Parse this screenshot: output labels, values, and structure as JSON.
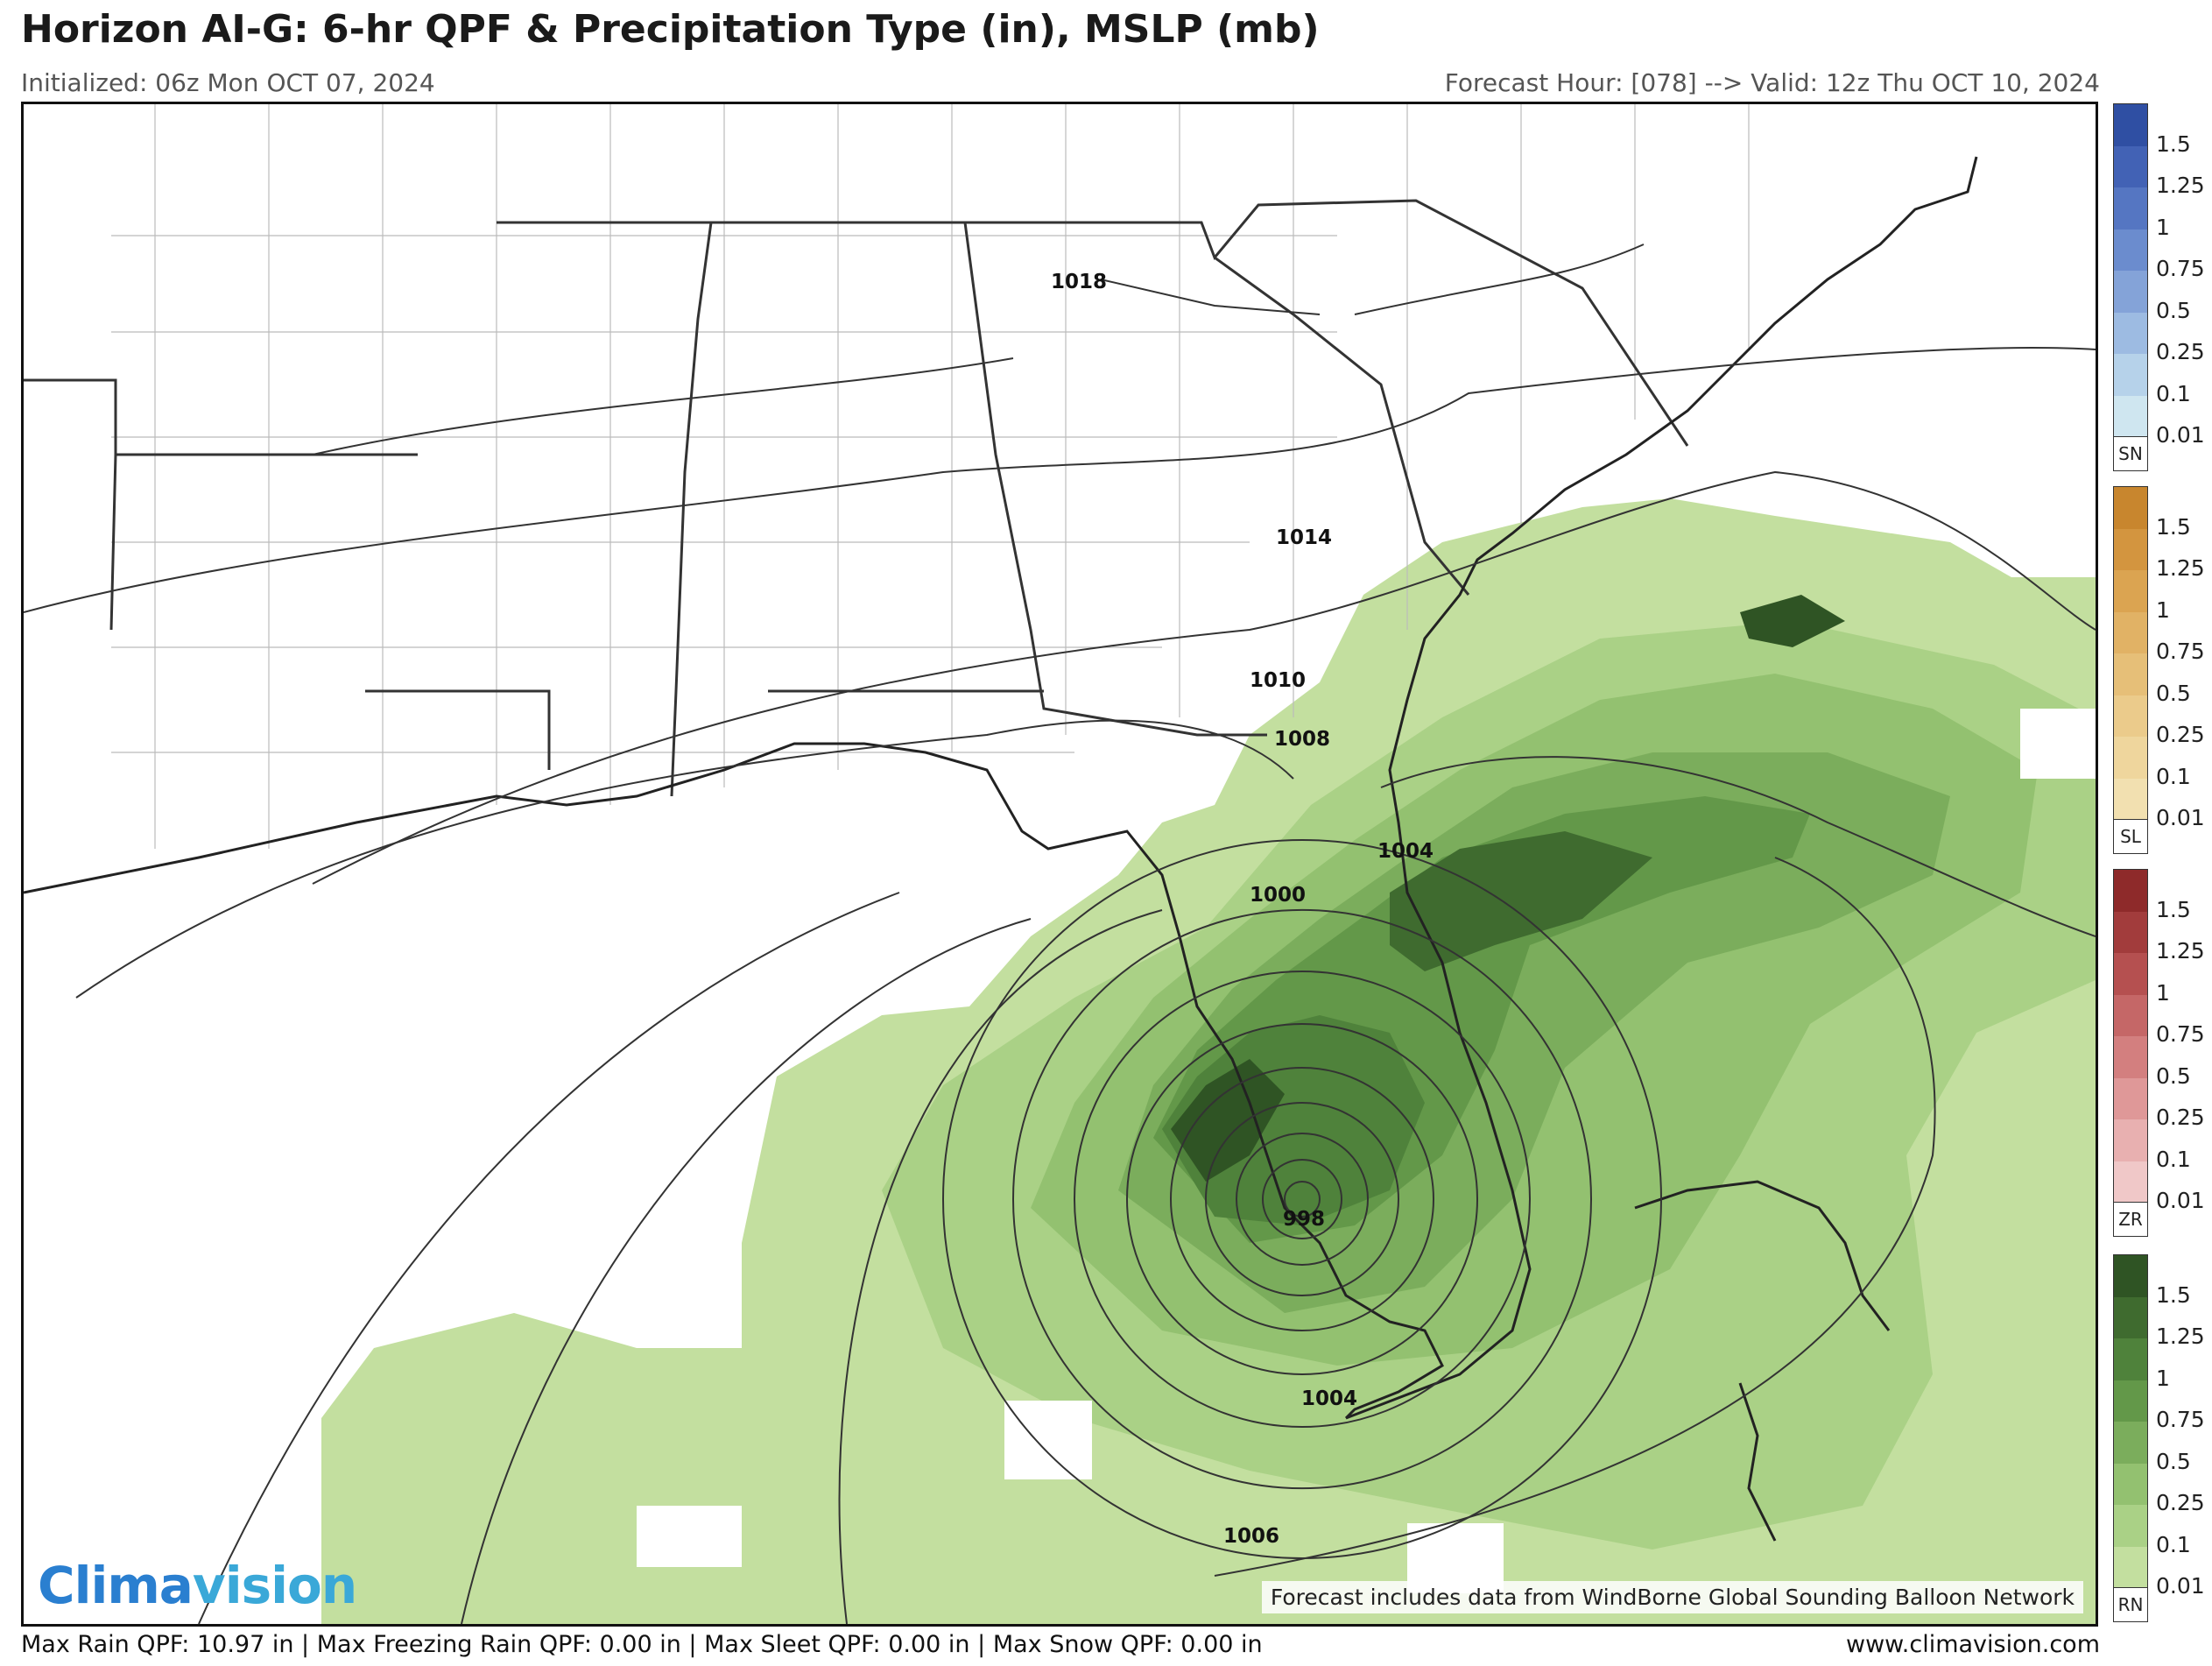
{
  "header": {
    "title": "Horizon AI-G: 6-hr QPF & Precipitation Type (in), MSLP (mb)",
    "initialized": "Initialized: 06z Mon OCT 07, 2024",
    "valid": "Forecast Hour: [078] --> Valid: 12z Thu OCT 10, 2024"
  },
  "isobar_labels": [
    "1018",
    "1014",
    "1010",
    "1008",
    "1004",
    "1000",
    "998",
    "1004",
    "1006"
  ],
  "map": {
    "attribution": "Forecast includes data from WindBorne Global Sounding Balloon Network",
    "logo_part1": "Clima",
    "logo_part2": "vision"
  },
  "legends": [
    {
      "tag": "SN",
      "labels": [
        "1.5",
        "1.25",
        "1",
        "0.75",
        "0.5",
        "0.25",
        "0.1",
        "0.01"
      ],
      "colors": [
        "#2f4fa3",
        "#4262b5",
        "#5576c2",
        "#6b8cce",
        "#84a3d8",
        "#9dbbe2",
        "#b6d2ea",
        "#cfe6f0"
      ]
    },
    {
      "tag": "SL",
      "labels": [
        "1.5",
        "1.25",
        "1",
        "0.75",
        "0.5",
        "0.25",
        "0.1",
        "0.01"
      ],
      "colors": [
        "#c8862e",
        "#d3953f",
        "#dba451",
        "#e1b265",
        "#e6bf78",
        "#ebcb8b",
        "#efd69d",
        "#f2e0b0"
      ]
    },
    {
      "tag": "ZR",
      "labels": [
        "1.5",
        "1.25",
        "1",
        "0.75",
        "0.5",
        "0.25",
        "0.1",
        "0.01"
      ],
      "colors": [
        "#8e2a2a",
        "#a23c3c",
        "#b55050",
        "#c56767",
        "#d37f7f",
        "#df9898",
        "#e8b0b0",
        "#f0c8c8"
      ]
    },
    {
      "tag": "RN",
      "labels": [
        "1.5",
        "1.25",
        "1",
        "0.75",
        "0.5",
        "0.25",
        "0.1",
        "0.01"
      ],
      "colors": [
        "#2f5424",
        "#3f6b2f",
        "#4f823b",
        "#639849",
        "#7bad5c",
        "#93c170",
        "#aad186",
        "#c3df9f"
      ]
    }
  ],
  "footer": {
    "max_rain": "Max Rain QPF: 10.97 in",
    "max_fzra": "Max Freezing Rain QPF: 0.00 in",
    "max_sleet": "Max Sleet QPF: 0.00 in",
    "max_snow": "Max Snow QPF: 0.00 in",
    "separator": "|",
    "website": "www.climavision.com"
  }
}
